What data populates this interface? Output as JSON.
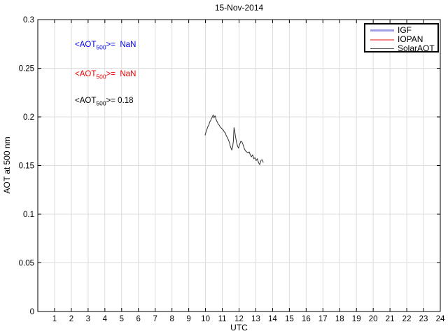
{
  "figure": {
    "title": "15-Nov-2014",
    "background": "#ffffff"
  },
  "axes": {
    "xlabel": "UTC",
    "ylabel": "AOT at 500 nm"
  },
  "annotations": [
    {
      "series": "IGF",
      "prefix": "<AOT",
      "sub": "500",
      "rest": ">=  NaN",
      "value": "NaN",
      "color": "#0000ee"
    },
    {
      "series": "IOPAN",
      "prefix": "<AOT",
      "sub": "500",
      "rest": ">=  NaN",
      "value": "NaN",
      "color": "#ee0000"
    },
    {
      "series": "SolarAOT",
      "prefix": "<AOT",
      "sub": "500",
      "rest": ">= 0.18",
      "value": "0.18",
      "color": "#000000"
    }
  ],
  "legend": {
    "position": "top-right",
    "entries": [
      {
        "label": "IGF",
        "color": "#a0a0e8"
      },
      {
        "label": "IOPAN",
        "color": "#f08a8a"
      },
      {
        "label": "SolarAOT",
        "color": "#5a5a5a"
      }
    ]
  },
  "chart_data": {
    "type": "line",
    "title": "15-Nov-2014",
    "xlabel": "UTC",
    "ylabel": "AOT at 500 nm",
    "xlim": [
      0,
      24
    ],
    "ylim": [
      0,
      0.3
    ],
    "x_ticks": [
      1,
      2,
      3,
      4,
      5,
      6,
      7,
      8,
      9,
      10,
      11,
      12,
      13,
      14,
      15,
      16,
      17,
      18,
      19,
      20,
      21,
      22,
      23,
      24
    ],
    "y_ticks": [
      0,
      0.05,
      0.1,
      0.15,
      0.2,
      0.25,
      0.3
    ],
    "y_tick_labels": [
      "0",
      "0.05",
      "0.1",
      "0.15",
      "0.2",
      "0.25",
      "0.3"
    ],
    "grid": true,
    "grid_color": "#dcdcdc",
    "axis_color": "#000000",
    "legend_position": "top-right",
    "series": [
      {
        "name": "IGF",
        "color": "#a0a0e8",
        "points": []
      },
      {
        "name": "IOPAN",
        "color": "#f08a8a",
        "points": []
      },
      {
        "name": "SolarAOT",
        "color": "#2f2f2f",
        "mean_aot_500": 0.18,
        "points": [
          [
            9.97,
            0.181
          ],
          [
            10.02,
            0.184
          ],
          [
            10.06,
            0.186
          ],
          [
            10.1,
            0.188
          ],
          [
            10.14,
            0.19
          ],
          [
            10.18,
            0.191
          ],
          [
            10.22,
            0.193
          ],
          [
            10.26,
            0.195
          ],
          [
            10.3,
            0.196
          ],
          [
            10.34,
            0.198
          ],
          [
            10.38,
            0.199
          ],
          [
            10.42,
            0.2005
          ],
          [
            10.46,
            0.202
          ],
          [
            10.5,
            0.199
          ],
          [
            10.54,
            0.2005
          ],
          [
            10.58,
            0.201
          ],
          [
            10.62,
            0.198
          ],
          [
            10.66,
            0.196
          ],
          [
            10.71,
            0.1945
          ],
          [
            10.76,
            0.1925
          ],
          [
            10.82,
            0.1915
          ],
          [
            10.88,
            0.1895
          ],
          [
            10.94,
            0.1885
          ],
          [
            11.0,
            0.1875
          ],
          [
            11.06,
            0.1865
          ],
          [
            11.12,
            0.1845
          ],
          [
            11.18,
            0.1835
          ],
          [
            11.24,
            0.1805
          ],
          [
            11.3,
            0.179
          ],
          [
            11.36,
            0.1765
          ],
          [
            11.42,
            0.174
          ],
          [
            11.47,
            0.1705
          ],
          [
            11.52,
            0.168
          ],
          [
            11.57,
            0.166
          ],
          [
            11.62,
            0.1695
          ],
          [
            11.66,
            0.175
          ],
          [
            11.7,
            0.189
          ],
          [
            11.74,
            0.1855
          ],
          [
            11.79,
            0.1795
          ],
          [
            11.85,
            0.174
          ],
          [
            11.91,
            0.17
          ],
          [
            11.97,
            0.168
          ],
          [
            12.04,
            0.172
          ],
          [
            12.11,
            0.175
          ],
          [
            12.18,
            0.174
          ],
          [
            12.25,
            0.171
          ],
          [
            12.32,
            0.167
          ],
          [
            12.39,
            0.165
          ],
          [
            12.46,
            0.164
          ],
          [
            12.53,
            0.163
          ],
          [
            12.6,
            0.164
          ],
          [
            12.67,
            0.161
          ],
          [
            12.74,
            0.159
          ],
          [
            12.81,
            0.161
          ],
          [
            12.88,
            0.157
          ],
          [
            12.95,
            0.158
          ],
          [
            13.02,
            0.155
          ],
          [
            13.09,
            0.157
          ],
          [
            13.16,
            0.153
          ],
          [
            13.23,
            0.151
          ],
          [
            13.31,
            0.1555
          ],
          [
            13.38,
            0.156
          ],
          [
            13.45,
            0.153
          ]
        ]
      }
    ]
  }
}
